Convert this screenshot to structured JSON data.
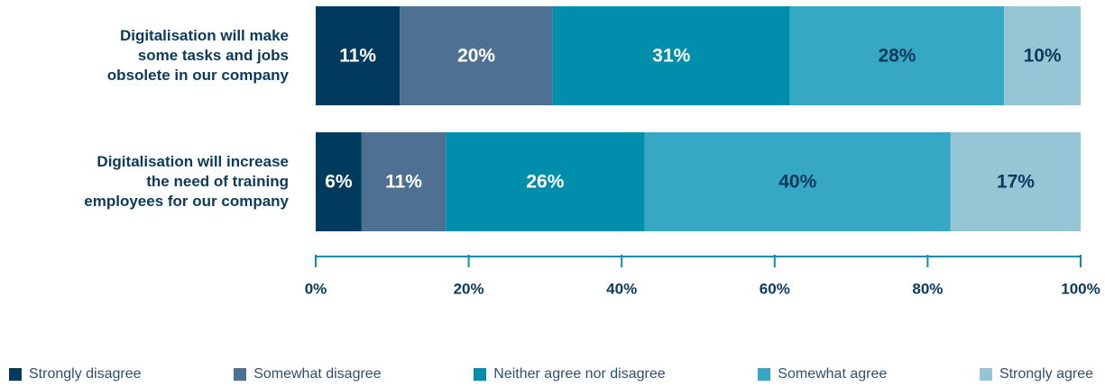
{
  "chart_data": {
    "type": "stacked_barh",
    "categories": [
      "Digitalisation will make some tasks and jobs obsolete in our company",
      "Digitalisation will increase the need of training employees for our company"
    ],
    "series": [
      {
        "name": "Strongly disagree",
        "color": "#003a5d",
        "label_color": "#ffffff",
        "values": [
          11,
          6
        ],
        "value_labels": [
          "11%",
          "6%"
        ]
      },
      {
        "name": "Somewhat disagree",
        "color": "#4e7092",
        "label_color": "#ffffff",
        "values": [
          20,
          11
        ],
        "value_labels": [
          "20%",
          "11%"
        ]
      },
      {
        "name": "Neither agree nor disagree",
        "color": "#008ead",
        "label_color": "#ffffff",
        "values": [
          31,
          26
        ],
        "value_labels": [
          "31%",
          "26%"
        ]
      },
      {
        "name": "Somewhat agree",
        "color": "#36a8c3",
        "label_color": "#0b3a5c",
        "values": [
          28,
          40
        ],
        "value_labels": [
          "28%",
          "40%"
        ]
      },
      {
        "name": "Strongly agree",
        "color": "#96c5d5",
        "label_color": "#0b3a5c",
        "values": [
          10,
          17
        ],
        "value_labels": [
          "10%",
          "17%"
        ]
      }
    ],
    "xlim": [
      0,
      100
    ],
    "xticks": [
      {
        "value": 0,
        "label": "0%"
      },
      {
        "value": 20,
        "label": "20%"
      },
      {
        "value": 40,
        "label": "40%"
      },
      {
        "value": 60,
        "label": "60%"
      },
      {
        "value": 80,
        "label": "80%"
      },
      {
        "value": 100,
        "label": "100%"
      }
    ],
    "axis_color": "#0b8fae"
  }
}
